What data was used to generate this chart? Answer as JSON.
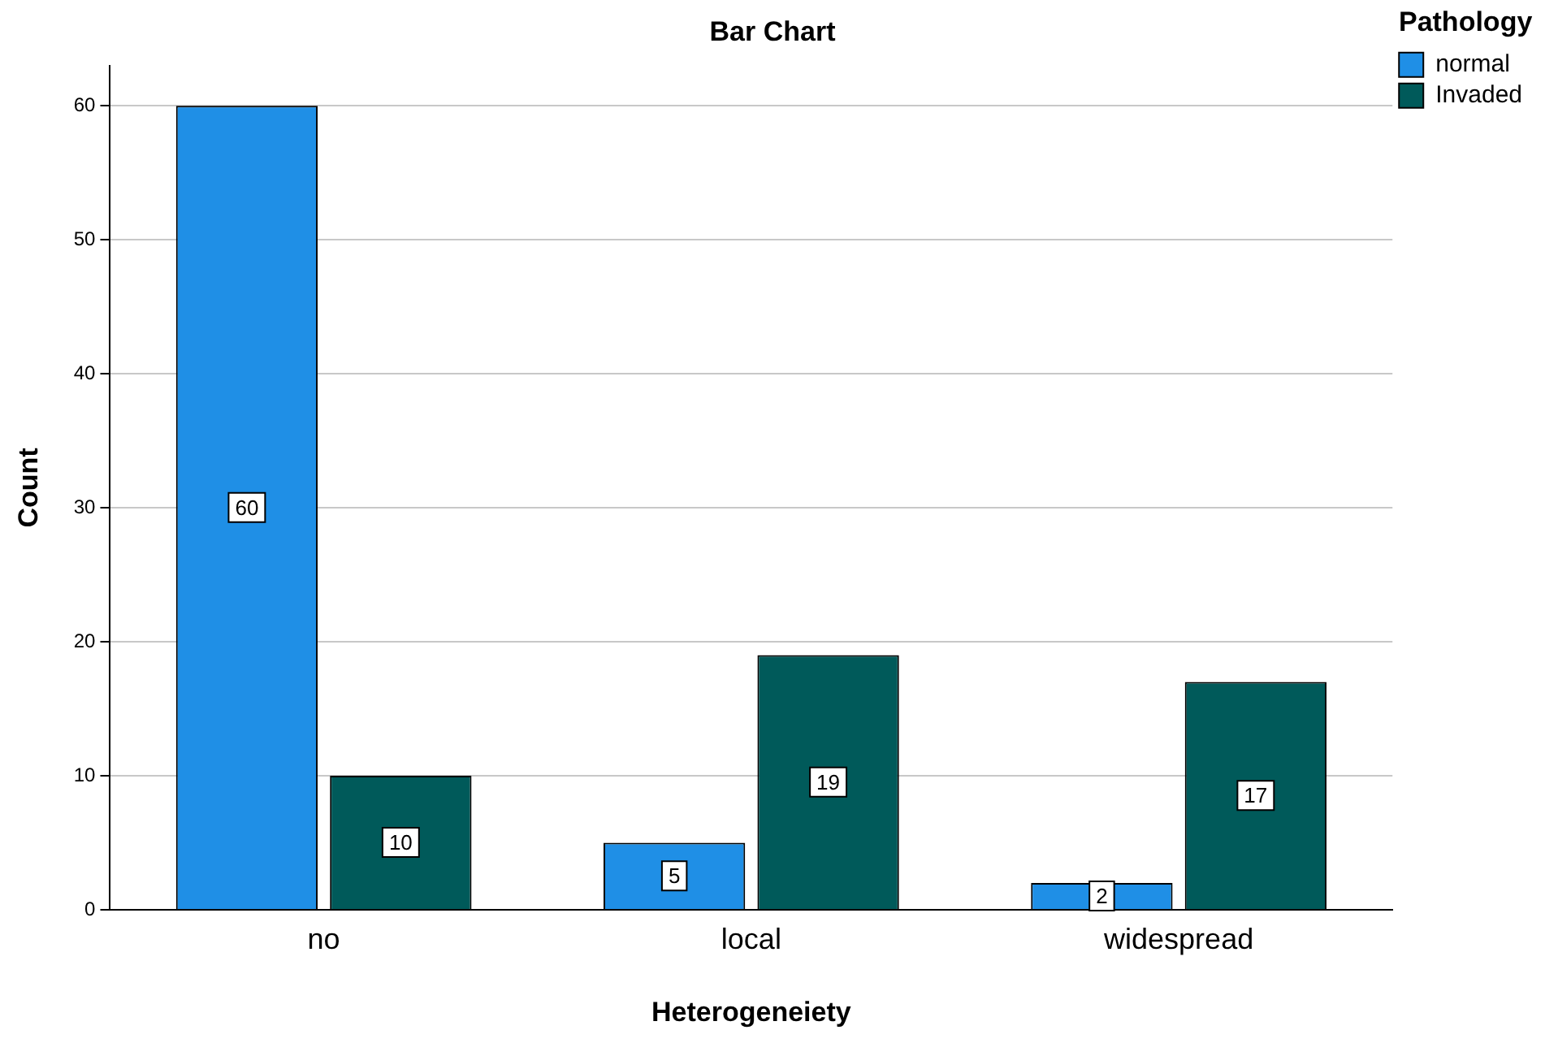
{
  "chart_data": {
    "type": "bar",
    "title": "Bar Chart",
    "xlabel": "Heterogeneiety",
    "ylabel": "Count",
    "legend_title": "Pathology",
    "categories": [
      "no",
      "local",
      "widespread"
    ],
    "series": [
      {
        "name": "normal",
        "color": "#1f8fe6",
        "values": [
          60,
          5,
          2
        ]
      },
      {
        "name": "Invaded",
        "color": "#005a5a",
        "values": [
          10,
          19,
          17
        ]
      }
    ],
    "ylim": [
      0,
      63
    ],
    "yticks": [
      0,
      10,
      20,
      30,
      40,
      50,
      60
    ],
    "grid": "y",
    "legend": "top right",
    "data_labels": true
  }
}
